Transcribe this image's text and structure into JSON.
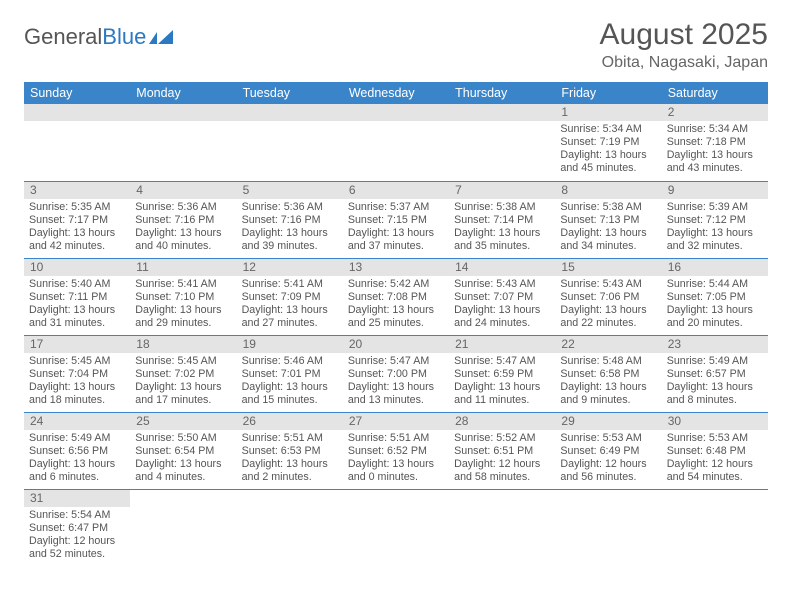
{
  "logo": {
    "text1": "General",
    "text2": "Blue"
  },
  "title": "August 2025",
  "location": "Obita, Nagasaki, Japan",
  "colors": {
    "header_bg": "#3a85c9",
    "header_text": "#ffffff",
    "daynum_bg": "#e4e4e4",
    "rule": "#3a85c9",
    "body_text": "#555555",
    "logo_blue": "#2b79c2"
  },
  "weekdays": [
    "Sunday",
    "Monday",
    "Tuesday",
    "Wednesday",
    "Thursday",
    "Friday",
    "Saturday"
  ],
  "weeks": [
    [
      {
        "n": "",
        "sr": "",
        "ss": "",
        "dl": ""
      },
      {
        "n": "",
        "sr": "",
        "ss": "",
        "dl": ""
      },
      {
        "n": "",
        "sr": "",
        "ss": "",
        "dl": ""
      },
      {
        "n": "",
        "sr": "",
        "ss": "",
        "dl": ""
      },
      {
        "n": "",
        "sr": "",
        "ss": "",
        "dl": ""
      },
      {
        "n": "1",
        "sr": "Sunrise: 5:34 AM",
        "ss": "Sunset: 7:19 PM",
        "dl": "Daylight: 13 hours and 45 minutes."
      },
      {
        "n": "2",
        "sr": "Sunrise: 5:34 AM",
        "ss": "Sunset: 7:18 PM",
        "dl": "Daylight: 13 hours and 43 minutes."
      }
    ],
    [
      {
        "n": "3",
        "sr": "Sunrise: 5:35 AM",
        "ss": "Sunset: 7:17 PM",
        "dl": "Daylight: 13 hours and 42 minutes."
      },
      {
        "n": "4",
        "sr": "Sunrise: 5:36 AM",
        "ss": "Sunset: 7:16 PM",
        "dl": "Daylight: 13 hours and 40 minutes."
      },
      {
        "n": "5",
        "sr": "Sunrise: 5:36 AM",
        "ss": "Sunset: 7:16 PM",
        "dl": "Daylight: 13 hours and 39 minutes."
      },
      {
        "n": "6",
        "sr": "Sunrise: 5:37 AM",
        "ss": "Sunset: 7:15 PM",
        "dl": "Daylight: 13 hours and 37 minutes."
      },
      {
        "n": "7",
        "sr": "Sunrise: 5:38 AM",
        "ss": "Sunset: 7:14 PM",
        "dl": "Daylight: 13 hours and 35 minutes."
      },
      {
        "n": "8",
        "sr": "Sunrise: 5:38 AM",
        "ss": "Sunset: 7:13 PM",
        "dl": "Daylight: 13 hours and 34 minutes."
      },
      {
        "n": "9",
        "sr": "Sunrise: 5:39 AM",
        "ss": "Sunset: 7:12 PM",
        "dl": "Daylight: 13 hours and 32 minutes."
      }
    ],
    [
      {
        "n": "10",
        "sr": "Sunrise: 5:40 AM",
        "ss": "Sunset: 7:11 PM",
        "dl": "Daylight: 13 hours and 31 minutes."
      },
      {
        "n": "11",
        "sr": "Sunrise: 5:41 AM",
        "ss": "Sunset: 7:10 PM",
        "dl": "Daylight: 13 hours and 29 minutes."
      },
      {
        "n": "12",
        "sr": "Sunrise: 5:41 AM",
        "ss": "Sunset: 7:09 PM",
        "dl": "Daylight: 13 hours and 27 minutes."
      },
      {
        "n": "13",
        "sr": "Sunrise: 5:42 AM",
        "ss": "Sunset: 7:08 PM",
        "dl": "Daylight: 13 hours and 25 minutes."
      },
      {
        "n": "14",
        "sr": "Sunrise: 5:43 AM",
        "ss": "Sunset: 7:07 PM",
        "dl": "Daylight: 13 hours and 24 minutes."
      },
      {
        "n": "15",
        "sr": "Sunrise: 5:43 AM",
        "ss": "Sunset: 7:06 PM",
        "dl": "Daylight: 13 hours and 22 minutes."
      },
      {
        "n": "16",
        "sr": "Sunrise: 5:44 AM",
        "ss": "Sunset: 7:05 PM",
        "dl": "Daylight: 13 hours and 20 minutes."
      }
    ],
    [
      {
        "n": "17",
        "sr": "Sunrise: 5:45 AM",
        "ss": "Sunset: 7:04 PM",
        "dl": "Daylight: 13 hours and 18 minutes."
      },
      {
        "n": "18",
        "sr": "Sunrise: 5:45 AM",
        "ss": "Sunset: 7:02 PM",
        "dl": "Daylight: 13 hours and 17 minutes."
      },
      {
        "n": "19",
        "sr": "Sunrise: 5:46 AM",
        "ss": "Sunset: 7:01 PM",
        "dl": "Daylight: 13 hours and 15 minutes."
      },
      {
        "n": "20",
        "sr": "Sunrise: 5:47 AM",
        "ss": "Sunset: 7:00 PM",
        "dl": "Daylight: 13 hours and 13 minutes."
      },
      {
        "n": "21",
        "sr": "Sunrise: 5:47 AM",
        "ss": "Sunset: 6:59 PM",
        "dl": "Daylight: 13 hours and 11 minutes."
      },
      {
        "n": "22",
        "sr": "Sunrise: 5:48 AM",
        "ss": "Sunset: 6:58 PM",
        "dl": "Daylight: 13 hours and 9 minutes."
      },
      {
        "n": "23",
        "sr": "Sunrise: 5:49 AM",
        "ss": "Sunset: 6:57 PM",
        "dl": "Daylight: 13 hours and 8 minutes."
      }
    ],
    [
      {
        "n": "24",
        "sr": "Sunrise: 5:49 AM",
        "ss": "Sunset: 6:56 PM",
        "dl": "Daylight: 13 hours and 6 minutes."
      },
      {
        "n": "25",
        "sr": "Sunrise: 5:50 AM",
        "ss": "Sunset: 6:54 PM",
        "dl": "Daylight: 13 hours and 4 minutes."
      },
      {
        "n": "26",
        "sr": "Sunrise: 5:51 AM",
        "ss": "Sunset: 6:53 PM",
        "dl": "Daylight: 13 hours and 2 minutes."
      },
      {
        "n": "27",
        "sr": "Sunrise: 5:51 AM",
        "ss": "Sunset: 6:52 PM",
        "dl": "Daylight: 13 hours and 0 minutes."
      },
      {
        "n": "28",
        "sr": "Sunrise: 5:52 AM",
        "ss": "Sunset: 6:51 PM",
        "dl": "Daylight: 12 hours and 58 minutes."
      },
      {
        "n": "29",
        "sr": "Sunrise: 5:53 AM",
        "ss": "Sunset: 6:49 PM",
        "dl": "Daylight: 12 hours and 56 minutes."
      },
      {
        "n": "30",
        "sr": "Sunrise: 5:53 AM",
        "ss": "Sunset: 6:48 PM",
        "dl": "Daylight: 12 hours and 54 minutes."
      }
    ],
    [
      {
        "n": "31",
        "sr": "Sunrise: 5:54 AM",
        "ss": "Sunset: 6:47 PM",
        "dl": "Daylight: 12 hours and 52 minutes."
      },
      {
        "n": "",
        "sr": "",
        "ss": "",
        "dl": "",
        "blank": true
      },
      {
        "n": "",
        "sr": "",
        "ss": "",
        "dl": "",
        "blank": true
      },
      {
        "n": "",
        "sr": "",
        "ss": "",
        "dl": "",
        "blank": true
      },
      {
        "n": "",
        "sr": "",
        "ss": "",
        "dl": "",
        "blank": true
      },
      {
        "n": "",
        "sr": "",
        "ss": "",
        "dl": "",
        "blank": true
      },
      {
        "n": "",
        "sr": "",
        "ss": "",
        "dl": "",
        "blank": true
      }
    ]
  ]
}
